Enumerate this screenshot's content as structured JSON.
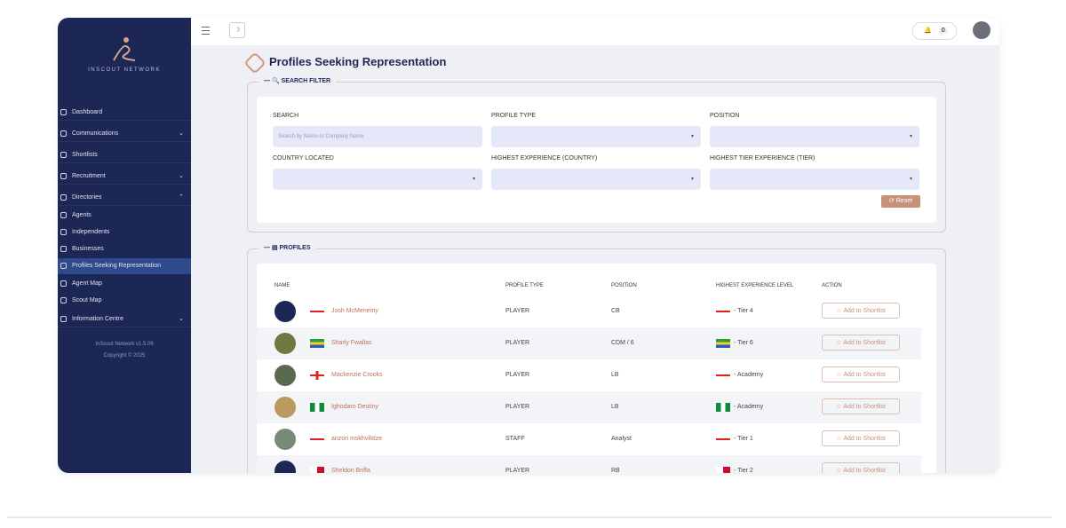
{
  "sidebar": {
    "brand": "INSCOUT NETWORK",
    "menu": [
      {
        "label": "Dashboard"
      },
      {
        "label": "Communications"
      },
      {
        "label": "Shortlists"
      },
      {
        "label": "Recruitment"
      },
      {
        "label": "Directories"
      },
      {
        "label": "Agents"
      },
      {
        "label": "Independents"
      },
      {
        "label": "Businesses"
      },
      {
        "label": "Profiles Seeking Representation"
      },
      {
        "label": "Agent Map"
      },
      {
        "label": "Scout Map"
      },
      {
        "label": "Information Centre"
      }
    ],
    "version": "InScout Network v1.5.06",
    "copyright": "Copyright © 2025"
  },
  "topbar": {
    "notifications": "0"
  },
  "page": {
    "title": "Profiles Seeking Representation",
    "filter": {
      "legend": "SEARCH FILTER",
      "fields": [
        {
          "label": "SEARCH",
          "placeholder": "Search by Name or Company Name"
        },
        {
          "label": "PROFILE TYPE"
        },
        {
          "label": "POSITION"
        },
        {
          "label": "COUNTRY LOCATED"
        },
        {
          "label": "HIGHEST EXPERIENCE (COUNTRY)"
        },
        {
          "label": "HIGHEST TIER EXPERIENCE (TIER)"
        }
      ],
      "reset": "Reset"
    },
    "profiles": {
      "legend": "PROFILES",
      "columns": [
        "NAME",
        "PROFILE TYPE",
        "POSITION",
        "HIGHEST EXPERIENCE LEVEL",
        "ACTION"
      ],
      "rows": [
        {
          "name": "Josh McMenemy",
          "type": "PLAYER",
          "position": "CB",
          "experience": "- Tier 4",
          "action": "Add to Shortlist"
        },
        {
          "name": "Sharly Fwallas",
          "type": "PLAYER",
          "position": "CDM / 6",
          "experience": "- Tier 6",
          "action": "Add to Shortlist"
        },
        {
          "name": "Mackenzie Crooks",
          "type": "PLAYER",
          "position": "LB",
          "experience": "- Academy",
          "action": "Add to Shortlist"
        },
        {
          "name": "Ighodaro Destiny",
          "type": "PLAYER",
          "position": "LB",
          "experience": "- Academy",
          "action": "Add to Shortlist"
        },
        {
          "name": "anzori mskhvilidze",
          "type": "STAFF",
          "position": "Analyst",
          "experience": "- Tier 1",
          "action": "Add to Shortlist"
        },
        {
          "name": "Sheldon Briffa",
          "type": "PLAYER",
          "position": "RB",
          "experience": "- Tier 2",
          "action": "Add to Shortlist"
        }
      ]
    }
  }
}
